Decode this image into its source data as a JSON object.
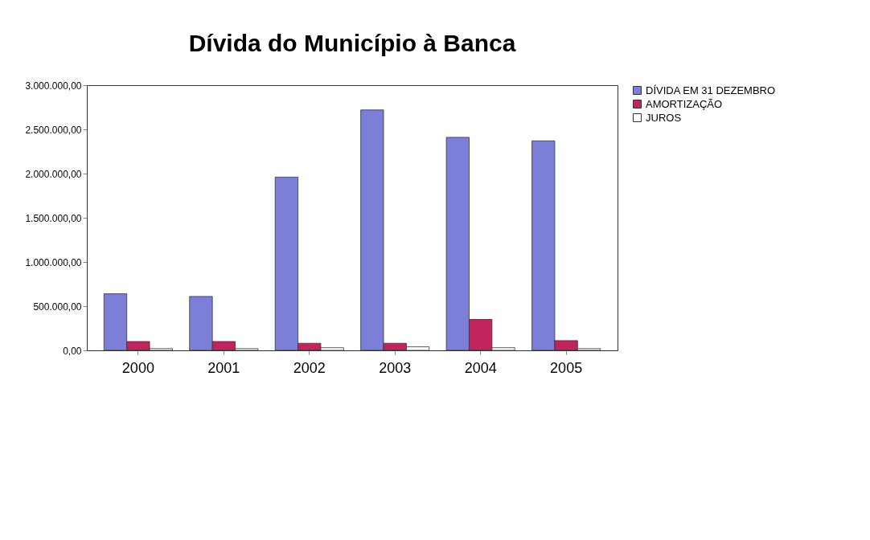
{
  "chart_data": {
    "type": "bar",
    "title": "Dívida do Município à Banca",
    "categories": [
      "2000",
      "2001",
      "2002",
      "2003",
      "2004",
      "2005"
    ],
    "series": [
      {
        "name": "DÍVIDA EM 31 DEZEMBRO",
        "color": "#7b7fd8",
        "values": [
          640000,
          610000,
          1960000,
          2720000,
          2410000,
          2370000
        ]
      },
      {
        "name": "AMORTIZAÇÃO",
        "color": "#c0245e",
        "values": [
          100000,
          100000,
          80000,
          80000,
          350000,
          110000
        ]
      },
      {
        "name": "JUROS",
        "color": "#ffffff",
        "values": [
          20000,
          20000,
          30000,
          40000,
          30000,
          20000
        ]
      }
    ],
    "ylim": [
      0,
      3000000
    ],
    "yticks": [
      {
        "value": 0,
        "label": "0,00"
      },
      {
        "value": 500000,
        "label": "500.000,00"
      },
      {
        "value": 1000000,
        "label": "1.000.000,00"
      },
      {
        "value": 1500000,
        "label": "1.500.000,00"
      },
      {
        "value": 2000000,
        "label": "2.000.000,00"
      },
      {
        "value": 2500000,
        "label": "2.500.000,00"
      },
      {
        "value": 3000000,
        "label": "3.000.000,00"
      }
    ],
    "grid": false,
    "legend": "right"
  }
}
